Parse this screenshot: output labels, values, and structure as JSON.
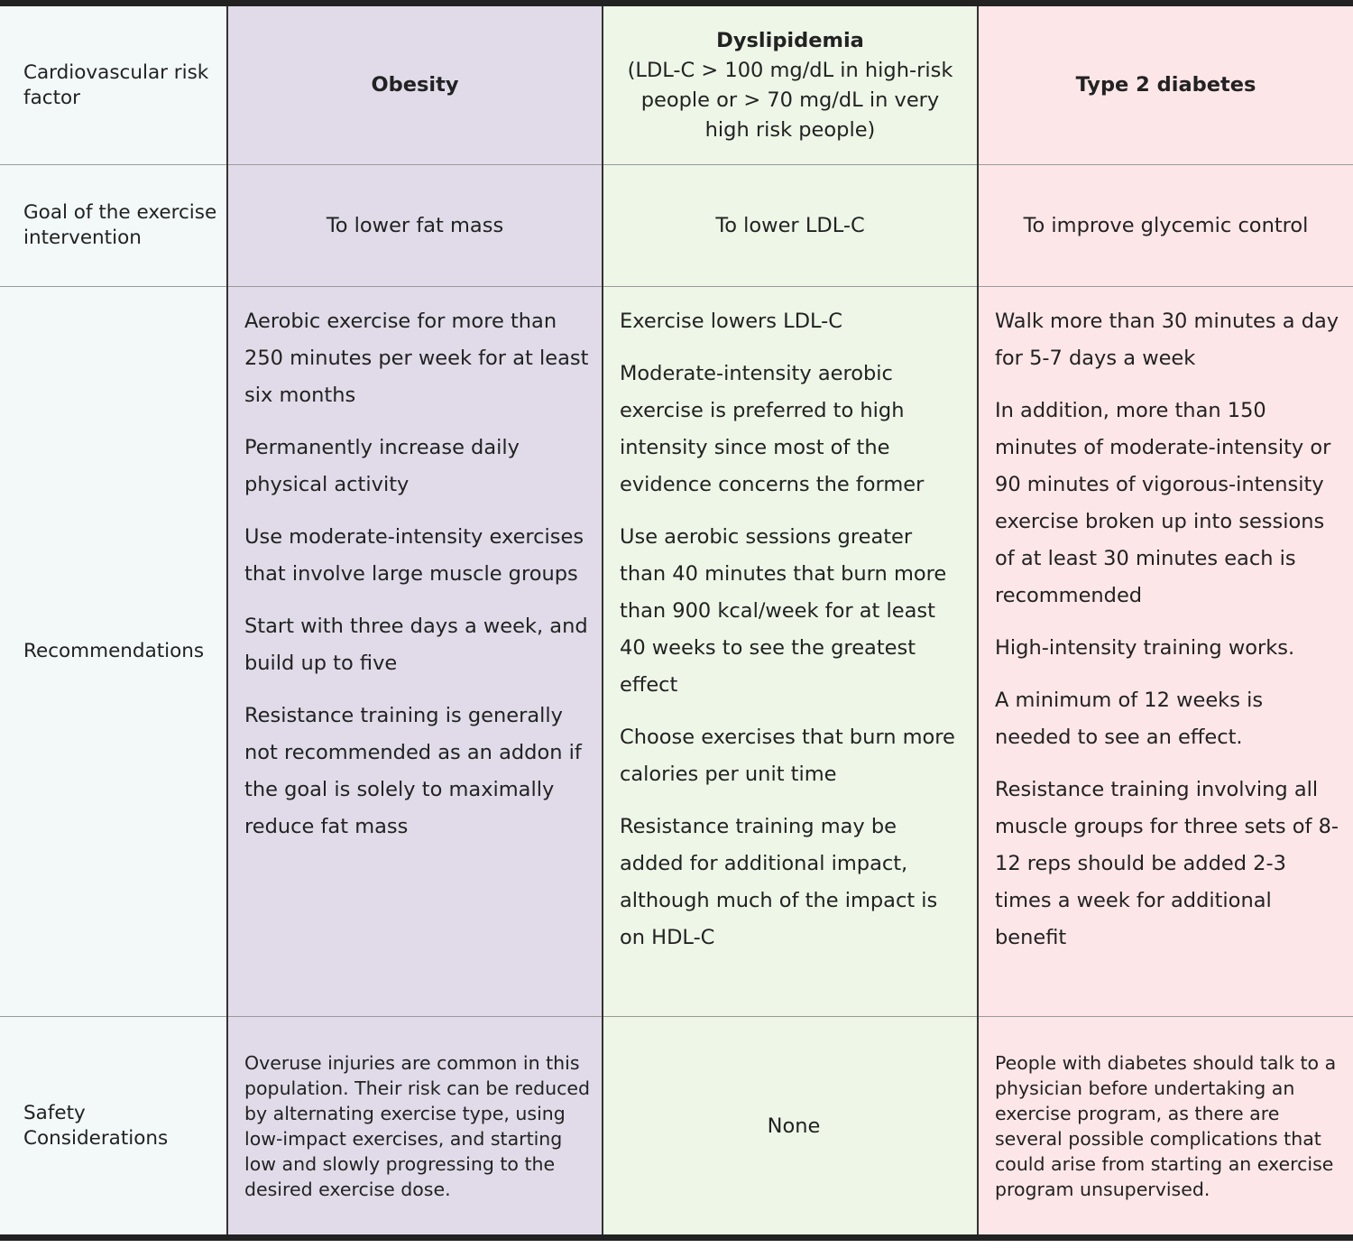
{
  "rows": {
    "risk_factor": {
      "label": "Cardiovascular risk factor",
      "obesity": "Obesity",
      "dyslipidemia_title": "Dyslipidemia",
      "dyslipidemia_sub": "(LDL-C > 100 mg/dL in high-risk people or > 70 mg/dL in very high risk people)",
      "diabetes": "Type 2 diabetes"
    },
    "goal": {
      "label": "Goal of the exercise intervention",
      "obesity": "To lower fat mass",
      "dyslipidemia": "To lower LDL-C",
      "diabetes": "To improve glycemic control"
    },
    "recommendations": {
      "label": "Recommendations",
      "obesity": [
        "Aerobic exercise for more than 250 minutes per week for at least six months",
        "Permanently increase daily physical activity",
        "Use moderate-intensity exercises that involve large muscle groups",
        "Start with three days a week, and build up to five",
        "Resistance training is generally not recommended as an addon if the goal is solely to maximally reduce fat mass"
      ],
      "dyslipidemia": [
        "Exercise lowers LDL-C",
        "Moderate-intensity aerobic exercise is preferred to high intensity since most of the evidence concerns the former",
        "Use aerobic sessions greater than 40 minutes that burn more than 900 kcal/week for at least 40 weeks to see the greatest effect",
        "Choose exercises that burn more calories per unit time",
        "Resistance training may be added for additional impact, although much of the impact is on HDL-C"
      ],
      "diabetes": [
        "Walk more than 30 minutes a day for 5-7 days a week",
        "In addition, more than 150 minutes of moderate-intensity or 90 minutes of vigorous-intensity exercise broken up into sessions of at least 30 minutes each is recommended",
        "High-intensity training works.",
        "A minimum of 12 weeks is needed to see an effect.",
        "Resistance training involving all muscle groups for three sets of 8-12 reps should be added 2-3 times a week for additional benefit"
      ]
    },
    "safety": {
      "label": "Safety Considerations",
      "obesity": "Overuse injuries are common in this population. Their risk can be reduced by alternating exercise type, using low-impact exercises, and starting low and slowly progressing to the desired exercise dose.",
      "dyslipidemia": "None",
      "diabetes": "People with diabetes should talk to a physician before undertaking an exercise program, as there are several possible complications that could arise from starting an exercise program unsupervised."
    }
  },
  "colors": {
    "label_column": "#f2f9f8",
    "obesity": "#e1dbe9",
    "dyslipidemia": "#edf6e7",
    "diabetes": "#fde6e8"
  }
}
